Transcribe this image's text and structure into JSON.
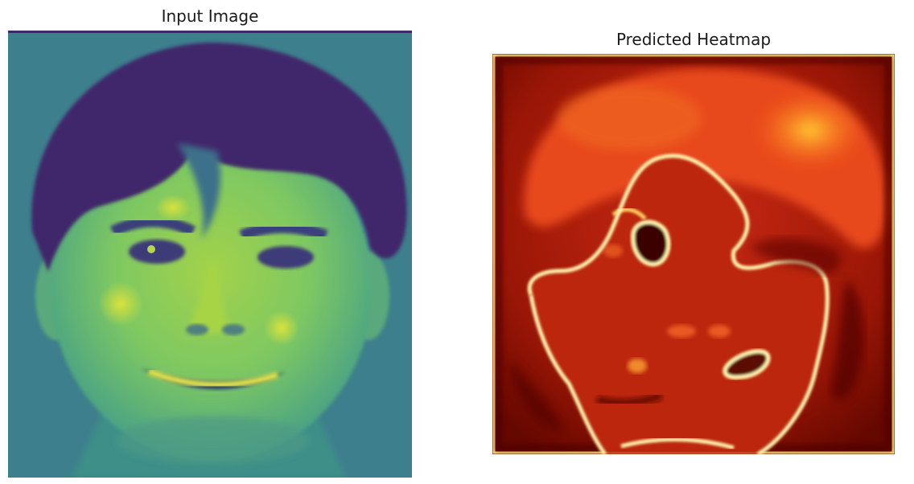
{
  "figure": {
    "left_panel": {
      "title": "Input Image",
      "colormap": "viridis"
    },
    "right_panel": {
      "title": "Predicted Heatmap",
      "colormap": "hot"
    }
  },
  "colors": {
    "viridis_dark": "#3b2a6e",
    "viridis_mid": "#3f8a8c",
    "viridis_light": "#b5dc3a",
    "heat_dark": "#7a0a00",
    "heat_mid": "#d8331a",
    "heat_bright": "#ffd23a",
    "heat_edge": "#fff6a8"
  }
}
